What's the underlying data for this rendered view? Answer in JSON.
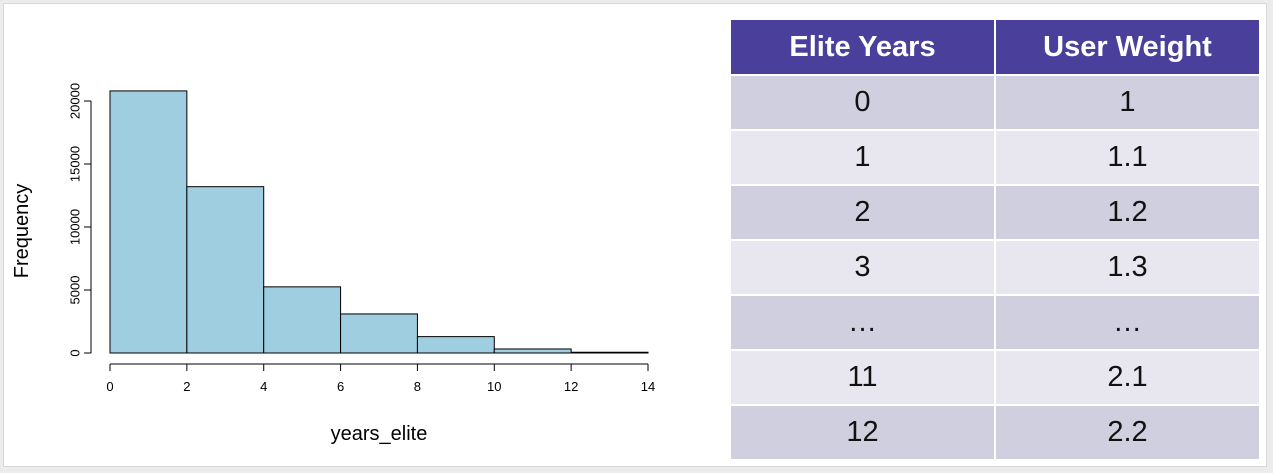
{
  "chart_data": {
    "type": "bar",
    "title": "",
    "xlabel": "years_elite",
    "ylabel": "Frequency",
    "bins": [
      {
        "start": 0,
        "end": 2,
        "value": 20800
      },
      {
        "start": 2,
        "end": 4,
        "value": 13200
      },
      {
        "start": 4,
        "end": 6,
        "value": 5250
      },
      {
        "start": 6,
        "end": 8,
        "value": 3100
      },
      {
        "start": 8,
        "end": 10,
        "value": 1300
      },
      {
        "start": 10,
        "end": 12,
        "value": 320
      },
      {
        "start": 12,
        "end": 14,
        "value": 60
      }
    ],
    "xlim": [
      0,
      14
    ],
    "ylim": [
      0,
      20000
    ],
    "xticks": [
      "0",
      "2",
      "4",
      "6",
      "8",
      "10",
      "12",
      "14"
    ],
    "yticks": [
      "0",
      "5000",
      "10000",
      "15000",
      "20000"
    ],
    "grid": false,
    "bar_color": "#9ecee0"
  },
  "table": {
    "headers": [
      "Elite Years",
      "User Weight"
    ],
    "rows": [
      [
        "0",
        "1"
      ],
      [
        "1",
        "1.1"
      ],
      [
        "2",
        "1.2"
      ],
      [
        "3",
        "1.3"
      ],
      [
        "…",
        "…"
      ],
      [
        "11",
        "2.1"
      ],
      [
        "12",
        "2.2"
      ]
    ],
    "header_color": "#4a3f9a"
  }
}
